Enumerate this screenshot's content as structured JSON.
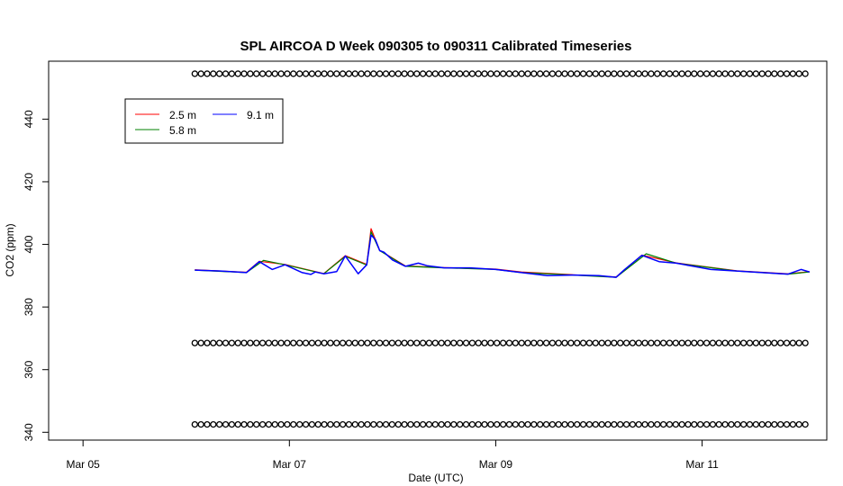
{
  "chart_data": {
    "type": "line",
    "title": "SPL AIRCOA D  Week 090305 to 090311  Calibrated Timeseries",
    "xlabel": "Date (UTC)",
    "ylabel": "CO2 (ppm)",
    "xlim": [
      "2009-03-04T16:00",
      "2009-03-12T05:00"
    ],
    "ylim": [
      337.5,
      458.5
    ],
    "x_ticks": [
      {
        "date": "2009-03-05T00:00",
        "label": "Mar 05"
      },
      {
        "date": "2009-03-07T00:00",
        "label": "Mar 07"
      },
      {
        "date": "2009-03-09T00:00",
        "label": "Mar 09"
      },
      {
        "date": "2009-03-11T00:00",
        "label": "Mar 11"
      }
    ],
    "y_ticks": [
      340,
      360,
      380,
      400,
      420,
      440
    ],
    "legend": {
      "placement": "top-left",
      "entries": [
        {
          "label": "2.5 m",
          "color": "#ff0000"
        },
        {
          "label": "5.8 m",
          "color": "#008000"
        },
        {
          "label": "9.1 m",
          "color": "#0000ff"
        }
      ]
    },
    "series": [
      {
        "name": "9.1 m",
        "color": "#0000ff",
        "x": [
          "2009-03-06T02:00",
          "2009-03-06T08:00",
          "2009-03-06T14:00",
          "2009-03-06T17:00",
          "2009-03-06T20:00",
          "2009-03-06T23:00",
          "2009-03-07T03:00",
          "2009-03-07T05:00",
          "2009-03-07T06:00",
          "2009-03-07T08:00",
          "2009-03-07T11:00",
          "2009-03-07T13:00",
          "2009-03-07T16:00",
          "2009-03-07T18:00",
          "2009-03-07T19:00",
          "2009-03-07T20:00",
          "2009-03-07T21:00",
          "2009-03-07T22:00",
          "2009-03-08T00:00",
          "2009-03-08T03:00",
          "2009-03-08T06:00",
          "2009-03-08T08:00",
          "2009-03-08T12:00",
          "2009-03-08T18:00",
          "2009-03-09T00:00",
          "2009-03-09T06:00",
          "2009-03-09T12:00",
          "2009-03-09T18:00",
          "2009-03-10T00:00",
          "2009-03-10T04:00",
          "2009-03-10T06:00",
          "2009-03-10T10:00",
          "2009-03-10T14:00",
          "2009-03-10T18:00",
          "2009-03-10T22:00",
          "2009-03-11T02:00",
          "2009-03-11T08:00",
          "2009-03-11T14:00",
          "2009-03-11T20:00",
          "2009-03-11T23:00",
          "2009-03-12T01:00"
        ],
        "values": [
          391.8,
          391.5,
          391.0,
          394.5,
          392.0,
          393.5,
          391.0,
          390.4,
          391.2,
          390.6,
          391.3,
          396.3,
          390.6,
          393.5,
          403.0,
          401.5,
          398.0,
          397.5,
          395.0,
          393.0,
          394.0,
          393.2,
          392.5,
          392.5,
          392.0,
          391.0,
          390.0,
          390.2,
          390.0,
          389.5,
          392.0,
          396.5,
          394.5,
          394.0,
          393.0,
          392.0,
          391.5,
          391.0,
          390.5,
          392.0,
          391.2
        ]
      },
      {
        "name": "2.5 m",
        "color": "#ff0000",
        "x": [
          "2009-03-06T02:00",
          "2009-03-06T14:00",
          "2009-03-06T17:00",
          "2009-03-06T23:00",
          "2009-03-07T08:00",
          "2009-03-07T13:00",
          "2009-03-07T18:00",
          "2009-03-07T19:00",
          "2009-03-07T21:00",
          "2009-03-08T03:00",
          "2009-03-08T12:00",
          "2009-03-09T00:00",
          "2009-03-09T06:00",
          "2009-03-09T18:00",
          "2009-03-10T04:00",
          "2009-03-10T10:00",
          "2009-03-10T18:00",
          "2009-03-11T08:00",
          "2009-03-11T20:00",
          "2009-03-12T01:00"
        ],
        "values": [
          391.9,
          391.1,
          394.6,
          393.6,
          390.7,
          396.4,
          393.6,
          405.0,
          398.1,
          393.1,
          392.6,
          392.1,
          391.2,
          390.3,
          389.6,
          396.6,
          394.1,
          391.6,
          390.6,
          391.3
        ]
      },
      {
        "name": "5.8 m",
        "color": "#008000",
        "x": [
          "2009-03-06T02:00",
          "2009-03-06T14:00",
          "2009-03-06T18:00",
          "2009-03-06T23:00",
          "2009-03-07T08:00",
          "2009-03-07T13:00",
          "2009-03-07T18:00",
          "2009-03-07T19:00",
          "2009-03-07T21:00",
          "2009-03-08T03:00",
          "2009-03-08T12:00",
          "2009-03-09T00:00",
          "2009-03-09T06:00",
          "2009-03-09T18:00",
          "2009-03-10T04:00",
          "2009-03-10T11:00",
          "2009-03-10T18:00",
          "2009-03-11T08:00",
          "2009-03-11T20:00",
          "2009-03-12T01:00"
        ],
        "values": [
          391.8,
          391.0,
          394.9,
          393.5,
          390.6,
          396.2,
          393.4,
          404.0,
          398.0,
          393.0,
          392.5,
          392.0,
          391.0,
          390.2,
          389.5,
          397.0,
          394.0,
          391.5,
          390.5,
          391.2
        ]
      }
    ],
    "marker_rows": [
      {
        "y": 454.5,
        "marker": "o"
      },
      {
        "y": 368.5,
        "marker": "o"
      },
      {
        "y": 342.5,
        "marker": "o"
      }
    ],
    "marker_range": [
      "2009-03-06T02:00",
      "2009-03-12T00:00"
    ]
  }
}
